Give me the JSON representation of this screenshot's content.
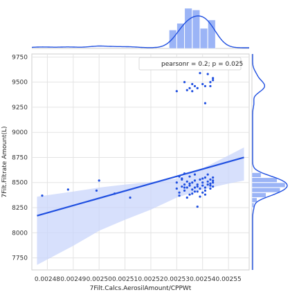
{
  "chart_data": {
    "type": "scatter",
    "title": "",
    "xlabel": "7Filt.Calcs.AerosilAmount/CPPWt",
    "ylabel": "7Filt.Filtrate Amount(L)",
    "xlim": [
      0.002474,
      0.002558
    ],
    "ylim": [
      7630,
      9780
    ],
    "x_ticks": [
      0.00248,
      0.00249,
      0.0025,
      0.00251,
      0.00252,
      0.00253,
      0.00254,
      0.00255
    ],
    "x_tick_labels": [
      "0.00248",
      "0.00249",
      "0.00250",
      "0.00251",
      "0.00252",
      "0.00253",
      "0.00254",
      "0.00255"
    ],
    "y_ticks": [
      7750,
      8000,
      8250,
      8500,
      8750,
      9000,
      9250,
      9500,
      9750
    ],
    "y_tick_labels": [
      "7750",
      "8000",
      "8250",
      "8500",
      "8750",
      "9000",
      "9250",
      "9500",
      "9750"
    ],
    "grid": true,
    "color": "#1f4fe0",
    "band_color": "#c9d6fb",
    "legend": {
      "text": "pearsonr = 0.2; p = 0.025",
      "placement": "top-right"
    },
    "regression": {
      "x": [
        0.002476,
        0.002556
      ],
      "y": [
        8170,
        8750
      ]
    },
    "confidence_band": {
      "x": [
        0.002476,
        0.00249,
        0.0025,
        0.00251,
        0.00252,
        0.00253,
        0.00254,
        0.00255,
        0.002556
      ],
      "upper": [
        8360,
        8410,
        8450,
        8480,
        8505,
        8540,
        8640,
        8770,
        8850
      ],
      "lower": [
        7680,
        7870,
        8020,
        8130,
        8230,
        8350,
        8430,
        8490,
        8520
      ]
    },
    "points": [
      [
        0.002478,
        8370
      ],
      [
        0.002488,
        8430
      ],
      [
        0.002499,
        8420
      ],
      [
        0.0025,
        8520
      ],
      [
        0.002506,
        8390
      ],
      [
        0.002512,
        8350
      ],
      [
        0.00253,
        9410
      ],
      [
        0.002533,
        9500
      ],
      [
        0.002534,
        9420
      ],
      [
        0.002535,
        9440
      ],
      [
        0.002536,
        9480
      ],
      [
        0.002536,
        9410
      ],
      [
        0.002537,
        9460
      ],
      [
        0.002538,
        9440
      ],
      [
        0.002539,
        9590
      ],
      [
        0.00254,
        9480
      ],
      [
        0.002541,
        9290
      ],
      [
        0.002541,
        9460
      ],
      [
        0.002542,
        9580
      ],
      [
        0.002543,
        9500
      ],
      [
        0.002544,
        9540
      ],
      [
        0.002544,
        9520
      ],
      [
        0.002543,
        9460
      ],
      [
        0.00253,
        8440
      ],
      [
        0.00253,
        8500
      ],
      [
        0.002531,
        8560
      ],
      [
        0.002531,
        8400
      ],
      [
        0.002532,
        8460
      ],
      [
        0.002532,
        8540
      ],
      [
        0.002533,
        8480
      ],
      [
        0.002533,
        8420
      ],
      [
        0.002533,
        8590
      ],
      [
        0.002534,
        8450
      ],
      [
        0.002534,
        8510
      ],
      [
        0.002535,
        8380
      ],
      [
        0.002535,
        8470
      ],
      [
        0.002535,
        8560
      ],
      [
        0.002536,
        8430
      ],
      [
        0.002536,
        8500
      ],
      [
        0.002537,
        8450
      ],
      [
        0.002537,
        8580
      ],
      [
        0.002537,
        8520
      ],
      [
        0.002538,
        8410
      ],
      [
        0.002538,
        8480
      ],
      [
        0.002538,
        8460
      ],
      [
        0.002538,
        8260
      ],
      [
        0.002539,
        8530
      ],
      [
        0.002539,
        8440
      ],
      [
        0.00254,
        8470
      ],
      [
        0.00254,
        8400
      ],
      [
        0.00254,
        8500
      ],
      [
        0.002541,
        8550
      ],
      [
        0.002541,
        8450
      ],
      [
        0.002541,
        8420
      ],
      [
        0.002542,
        8510
      ],
      [
        0.002542,
        8480
      ],
      [
        0.002542,
        8580
      ],
      [
        0.002543,
        8440
      ],
      [
        0.002543,
        8530
      ],
      [
        0.002543,
        8490
      ],
      [
        0.002544,
        8500
      ],
      [
        0.002544,
        8460
      ],
      [
        0.002544,
        8550
      ],
      [
        0.002544,
        8520
      ],
      [
        0.002531,
        8370
      ],
      [
        0.002534,
        8350
      ],
      [
        0.002536,
        8390
      ],
      [
        0.002539,
        8360
      ],
      [
        0.002541,
        8380
      ],
      [
        0.002532,
        8530
      ],
      [
        0.002535,
        8490
      ],
      [
        0.00254,
        8540
      ],
      [
        0.002537,
        8410
      ],
      [
        0.002533,
        8450
      ],
      [
        0.002543,
        8470
      ]
    ],
    "x_marginal_hist": {
      "bins": [
        0.002527,
        0.00253,
        0.002533,
        0.002536,
        0.002539,
        0.002542,
        0.002545
      ],
      "counts": [
        11,
        15,
        24,
        23,
        12,
        17
      ]
    },
    "y_marginal_hist": {
      "bins": [
        8250,
        8300,
        8350,
        8400,
        8450,
        8500,
        8550,
        8600
      ],
      "counts": [
        2,
        5,
        14,
        28,
        33,
        25,
        9
      ]
    }
  }
}
